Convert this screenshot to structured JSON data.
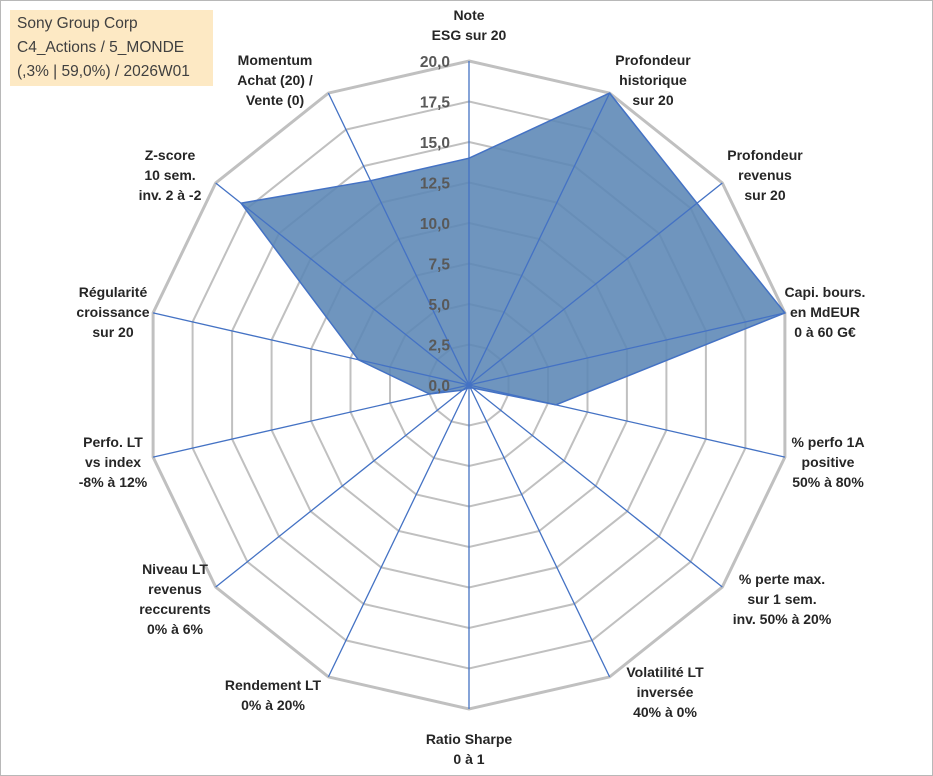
{
  "info": {
    "line1": "Sony Group Corp",
    "line2": "C4_Actions / 5_MONDE",
    "line3": "(,3% | 59,0%) / 2026W01"
  },
  "colors": {
    "grid": "#c0c0c0",
    "spoke": "#4472c4",
    "fill": "#5b86b5",
    "fill_stroke": "#4472c4"
  },
  "chart_data": {
    "type": "radar",
    "title": "",
    "r_range": [
      0,
      20
    ],
    "r_ticks": [
      "0,0",
      "2,5",
      "5,0",
      "7,5",
      "10,0",
      "12,5",
      "15,0",
      "17,5",
      "20,0"
    ],
    "categories": [
      [
        "Note",
        "ESG sur 20"
      ],
      [
        "Profondeur",
        "historique",
        "sur 20"
      ],
      [
        "Profondeur",
        "revenus",
        "sur 20"
      ],
      [
        "Capi. bours.",
        "en MdEUR",
        "0 à 60 G€"
      ],
      [
        "% perfo 1A",
        "positive",
        "50% à 80%"
      ],
      [
        "% perte max.",
        "sur 1 sem.",
        "inv. 50% à 20%"
      ],
      [
        "Volatilité LT",
        "inversée",
        "40% à 0%"
      ],
      [
        "Ratio Sharpe",
        "0 à 1"
      ],
      [
        "Rendement LT",
        "0% à 20%"
      ],
      [
        "Niveau LT",
        "revenus",
        "reccurents",
        "0% à 6%"
      ],
      [
        "Perfo. LT",
        "vs index",
        "-8% à 12%"
      ],
      [
        "Régularité",
        "croissance",
        "sur 20"
      ],
      [
        "Z-score",
        "10 sem.",
        "inv. 2 à -2"
      ],
      [
        "Momentum",
        "Achat (20) /",
        "Vente (0)"
      ]
    ],
    "series": [
      {
        "name": "Sony Group Corp",
        "values": [
          14.0,
          20.0,
          18.0,
          20.0,
          5.5,
          0.3,
          0.2,
          0.2,
          0.2,
          0.5,
          2.5,
          7.0,
          18.0,
          14.0
        ]
      }
    ]
  }
}
